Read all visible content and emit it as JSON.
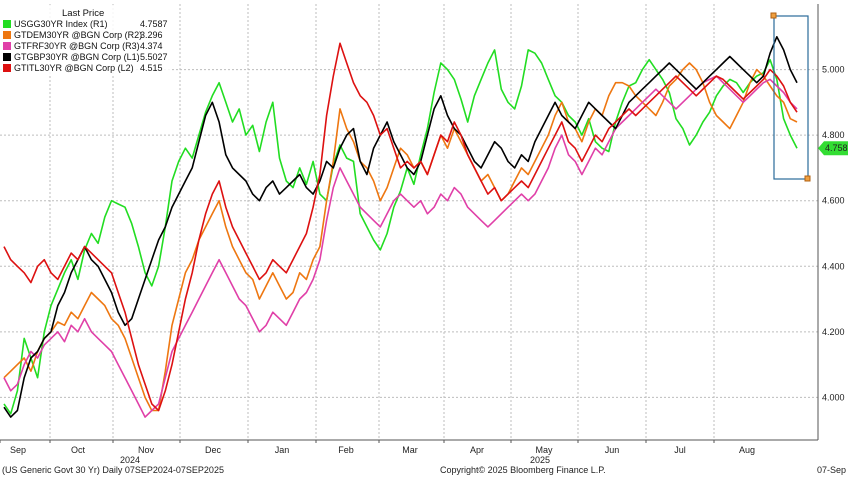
{
  "chart_data": {
    "type": "line",
    "title": "",
    "legend": {
      "placement": "top-left",
      "header": "Last Price",
      "entries": [
        {
          "label": "USGG30YR Index  (R1)",
          "value": "4.7587",
          "color": "#22dd22"
        },
        {
          "label": "GTDEM30YR @BGN Corp  (R2)",
          "value": "3.296",
          "color": "#ee7711"
        },
        {
          "label": "GTFRF30YR @BGN Corp  (R3)",
          "value": "4.374",
          "color": "#e040a8"
        },
        {
          "label": "GTGBP30YR @BGN Corp  (L1)",
          "value": "5.5027",
          "color": "#000000"
        },
        {
          "label": "GTITL30YR @BGN Corp  (L2)",
          "value": "4.515",
          "color": "#dd1111"
        }
      ]
    },
    "right_axis": {
      "ticks": [
        "4.000",
        "4.200",
        "4.400",
        "4.600",
        "4.800",
        "5.000"
      ],
      "ylim": [
        3.87,
        5.2
      ]
    },
    "x_axis": {
      "months": [
        "Sep",
        "Oct",
        "Nov",
        "Dec",
        "Jan",
        "Feb",
        "Mar",
        "Apr",
        "May",
        "Jun",
        "Jul",
        "Aug"
      ],
      "years": [
        "2024",
        "2025"
      ]
    },
    "last_value_label": "4.758",
    "grid": true,
    "footer": {
      "left": "(US Generic Govt 30 Yr)  Daily 07SEP2024-07SEP2025",
      "center": "Copyright© 2025 Bloomberg Finance L.P.",
      "right": "07-Sep"
    },
    "series": [
      {
        "name": "USGG30YR Index  (R1)",
        "color": "#22dd22",
        "values": [
          3.98,
          3.95,
          4.02,
          4.18,
          4.12,
          4.06,
          4.2,
          4.28,
          4.33,
          4.38,
          4.42,
          4.36,
          4.45,
          4.5,
          4.47,
          4.55,
          4.6,
          4.59,
          4.58,
          4.53,
          4.46,
          4.38,
          4.34,
          4.4,
          4.52,
          4.66,
          4.72,
          4.76,
          4.73,
          4.8,
          4.87,
          4.92,
          4.96,
          4.9,
          4.84,
          4.88,
          4.8,
          4.83,
          4.75,
          4.84,
          4.9,
          4.73,
          4.66,
          4.64,
          4.7,
          4.65,
          4.72,
          4.62,
          4.6,
          4.71,
          4.77,
          4.73,
          4.72,
          4.56,
          4.52,
          4.48,
          4.45,
          4.5,
          4.58,
          4.63,
          4.7,
          4.65,
          4.74,
          4.82,
          4.93,
          5.02,
          5.0,
          4.97,
          4.91,
          4.84,
          4.92,
          4.97,
          5.02,
          5.06,
          4.94,
          4.9,
          4.88,
          4.95,
          5.06,
          5.05,
          5.02,
          4.97,
          4.92,
          4.9,
          4.86,
          4.84,
          4.8,
          4.85,
          4.78,
          4.76,
          4.75,
          4.84,
          4.9,
          4.95,
          4.96,
          5.0,
          5.03,
          5.0,
          4.97,
          4.93,
          4.85,
          4.82,
          4.77,
          4.8,
          4.84,
          4.87,
          4.92,
          4.95,
          4.97,
          4.96,
          4.93,
          4.96,
          4.98,
          4.99,
          5.03,
          4.97,
          4.85,
          4.8,
          4.76
        ]
      },
      {
        "name": "GTDEM30YR @BGN Corp  (R2)",
        "color": "#ee7711",
        "values": [
          4.06,
          4.08,
          4.1,
          4.12,
          4.08,
          4.14,
          4.18,
          4.2,
          4.23,
          4.22,
          4.26,
          4.24,
          4.28,
          4.32,
          4.3,
          4.28,
          4.24,
          4.22,
          4.18,
          4.12,
          4.06,
          4.0,
          3.96,
          3.96,
          4.08,
          4.22,
          4.3,
          4.38,
          4.42,
          4.48,
          4.52,
          4.56,
          4.6,
          4.52,
          4.46,
          4.42,
          4.38,
          4.36,
          4.3,
          4.34,
          4.38,
          4.34,
          4.3,
          4.32,
          4.38,
          4.36,
          4.42,
          4.46,
          4.6,
          4.72,
          4.88,
          4.82,
          4.78,
          4.72,
          4.7,
          4.66,
          4.6,
          4.64,
          4.7,
          4.76,
          4.74,
          4.7,
          4.72,
          4.68,
          4.74,
          4.8,
          4.76,
          4.82,
          4.78,
          4.74,
          4.7,
          4.66,
          4.68,
          4.64,
          4.6,
          4.62,
          4.66,
          4.7,
          4.68,
          4.72,
          4.76,
          4.8,
          4.86,
          4.9,
          4.84,
          4.82,
          4.78,
          4.84,
          4.88,
          4.86,
          4.92,
          4.96,
          4.96,
          4.95,
          4.92,
          4.9,
          4.88,
          4.86,
          4.9,
          4.95,
          4.97,
          5.0,
          5.02,
          5.0,
          4.96,
          4.9,
          4.86,
          4.84,
          4.82,
          4.86,
          4.9,
          4.96,
          5.0,
          4.98,
          4.95,
          4.92,
          4.9,
          4.85,
          4.84
        ]
      },
      {
        "name": "GTFRF30YR @BGN Corp  (R3)",
        "color": "#e040a8",
        "values": [
          4.06,
          4.02,
          4.04,
          4.1,
          4.14,
          4.12,
          4.16,
          4.18,
          4.2,
          4.17,
          4.22,
          4.2,
          4.24,
          4.2,
          4.18,
          4.16,
          4.14,
          4.1,
          4.06,
          4.02,
          3.98,
          3.94,
          3.96,
          3.98,
          4.06,
          4.14,
          4.18,
          4.22,
          4.26,
          4.3,
          4.34,
          4.38,
          4.42,
          4.38,
          4.34,
          4.3,
          4.28,
          4.24,
          4.2,
          4.22,
          4.26,
          4.24,
          4.22,
          4.26,
          4.3,
          4.32,
          4.36,
          4.42,
          4.54,
          4.64,
          4.7,
          4.66,
          4.62,
          4.58,
          4.56,
          4.54,
          4.52,
          4.56,
          4.6,
          4.62,
          4.6,
          4.58,
          4.6,
          4.56,
          4.58,
          4.62,
          4.6,
          4.64,
          4.62,
          4.58,
          4.56,
          4.54,
          4.52,
          4.54,
          4.56,
          4.58,
          4.6,
          4.62,
          4.6,
          4.62,
          4.66,
          4.7,
          4.76,
          4.8,
          4.74,
          4.72,
          4.68,
          4.72,
          4.76,
          4.74,
          4.78,
          4.82,
          4.84,
          4.86,
          4.88,
          4.9,
          4.92,
          4.94,
          4.92,
          4.9,
          4.88,
          4.9,
          4.92,
          4.94,
          4.96,
          4.97,
          4.98,
          4.96,
          4.94,
          4.92,
          4.9,
          4.92,
          4.94,
          4.96,
          4.97,
          4.95,
          4.93,
          4.9,
          4.88
        ]
      },
      {
        "name": "GTGBP30YR @BGN Corp  (L1)",
        "color": "#000000",
        "values": [
          3.97,
          3.94,
          3.96,
          4.06,
          4.12,
          4.14,
          4.18,
          4.2,
          4.28,
          4.32,
          4.38,
          4.42,
          4.46,
          4.42,
          4.4,
          4.36,
          4.32,
          4.26,
          4.22,
          4.24,
          4.3,
          4.36,
          4.42,
          4.48,
          4.52,
          4.58,
          4.62,
          4.66,
          4.7,
          4.78,
          4.86,
          4.9,
          4.84,
          4.74,
          4.7,
          4.68,
          4.66,
          4.62,
          4.6,
          4.64,
          4.66,
          4.62,
          4.64,
          4.66,
          4.68,
          4.64,
          4.62,
          4.66,
          4.72,
          4.7,
          4.76,
          4.8,
          4.82,
          4.72,
          4.68,
          4.76,
          4.8,
          4.84,
          4.78,
          4.74,
          4.7,
          4.68,
          4.72,
          4.8,
          4.88,
          4.92,
          4.86,
          4.82,
          4.8,
          4.76,
          4.72,
          4.7,
          4.74,
          4.78,
          4.76,
          4.72,
          4.7,
          4.74,
          4.72,
          4.78,
          4.82,
          4.86,
          4.9,
          4.86,
          4.84,
          4.82,
          4.86,
          4.9,
          4.88,
          4.86,
          4.84,
          4.82,
          4.86,
          4.9,
          4.92,
          4.94,
          4.96,
          4.98,
          5.0,
          5.02,
          5.0,
          4.98,
          4.96,
          4.94,
          4.96,
          4.98,
          5.0,
          5.02,
          5.04,
          5.02,
          5.0,
          4.98,
          4.96,
          4.98,
          5.05,
          5.1,
          5.06,
          5.0,
          4.96
        ]
      },
      {
        "name": "GTITL30YR @BGN Corp  (L2)",
        "color": "#dd1111",
        "values": [
          4.46,
          4.42,
          4.4,
          4.38,
          4.35,
          4.4,
          4.42,
          4.38,
          4.36,
          4.4,
          4.44,
          4.42,
          4.46,
          4.44,
          4.42,
          4.4,
          4.38,
          4.32,
          4.26,
          4.18,
          4.1,
          4.04,
          3.98,
          3.96,
          4.02,
          4.1,
          4.2,
          4.3,
          4.38,
          4.48,
          4.56,
          4.62,
          4.66,
          4.58,
          4.52,
          4.48,
          4.44,
          4.4,
          4.36,
          4.38,
          4.42,
          4.4,
          4.38,
          4.42,
          4.46,
          4.5,
          4.58,
          4.68,
          4.86,
          4.98,
          5.08,
          5.02,
          4.96,
          4.92,
          4.9,
          4.86,
          4.8,
          4.82,
          4.76,
          4.7,
          4.72,
          4.7,
          4.72,
          4.68,
          4.74,
          4.8,
          4.78,
          4.84,
          4.8,
          4.74,
          4.7,
          4.66,
          4.62,
          4.64,
          4.6,
          4.62,
          4.64,
          4.66,
          4.64,
          4.68,
          4.72,
          4.76,
          4.8,
          4.84,
          4.78,
          4.76,
          4.72,
          4.76,
          4.8,
          4.78,
          4.82,
          4.84,
          4.86,
          4.88,
          4.86,
          4.88,
          4.9,
          4.92,
          4.94,
          4.96,
          4.98,
          4.96,
          4.94,
          4.92,
          4.94,
          4.96,
          4.98,
          4.97,
          4.95,
          4.93,
          4.91,
          4.93,
          4.95,
          4.97,
          5.0,
          4.98,
          4.95,
          4.9,
          4.87
        ]
      }
    ]
  }
}
